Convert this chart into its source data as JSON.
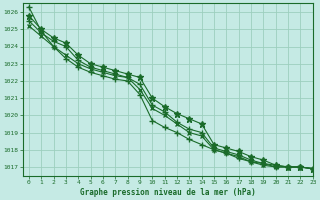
{
  "title": "Graphe pression niveau de la mer (hPa)",
  "background_color": "#c5eae4",
  "grid_color": "#9dcfbe",
  "line_color": "#1a6b2a",
  "xlim": [
    -0.5,
    23
  ],
  "ylim": [
    1016.5,
    1026.5
  ],
  "yticks": [
    1017,
    1018,
    1019,
    1020,
    1021,
    1022,
    1023,
    1024,
    1025,
    1026
  ],
  "xticks": [
    0,
    1,
    2,
    3,
    4,
    5,
    6,
    7,
    8,
    9,
    10,
    11,
    12,
    13,
    14,
    15,
    16,
    17,
    18,
    19,
    20,
    21,
    22,
    23
  ],
  "series": [
    [
      1025.5,
      1024.8,
      1024.3,
      1024.0,
      1023.2,
      1022.8,
      1022.6,
      1022.4,
      1022.2,
      1021.8,
      1020.6,
      1020.2,
      1019.6,
      1019.2,
      1019.0,
      1018.1,
      1017.9,
      1017.7,
      1017.4,
      1017.2,
      1017.0,
      1017.0,
      1017.0,
      1016.9
    ],
    [
      1025.8,
      1025.0,
      1024.5,
      1024.2,
      1023.5,
      1023.0,
      1022.8,
      1022.6,
      1022.4,
      1022.2,
      1021.0,
      1020.5,
      1020.1,
      1019.8,
      1019.5,
      1018.3,
      1018.1,
      1017.9,
      1017.6,
      1017.4,
      1017.1,
      1017.0,
      1017.0,
      1016.9
    ],
    [
      1025.2,
      1024.6,
      1024.0,
      1023.5,
      1023.0,
      1022.7,
      1022.5,
      1022.3,
      1022.2,
      1021.5,
      1020.4,
      1020.0,
      1019.5,
      1019.0,
      1018.8,
      1018.0,
      1017.8,
      1017.6,
      1017.3,
      1017.1,
      1017.0,
      1017.0,
      1017.0,
      1016.9
    ],
    [
      1026.3,
      1024.9,
      1024.0,
      1023.3,
      1022.8,
      1022.5,
      1022.3,
      1022.1,
      1022.0,
      1021.2,
      1019.7,
      1019.3,
      1019.0,
      1018.6,
      1018.3,
      1018.0,
      1017.8,
      1017.5,
      1017.3,
      1017.2,
      1017.1,
      1017.0,
      1017.0,
      1016.9
    ]
  ]
}
